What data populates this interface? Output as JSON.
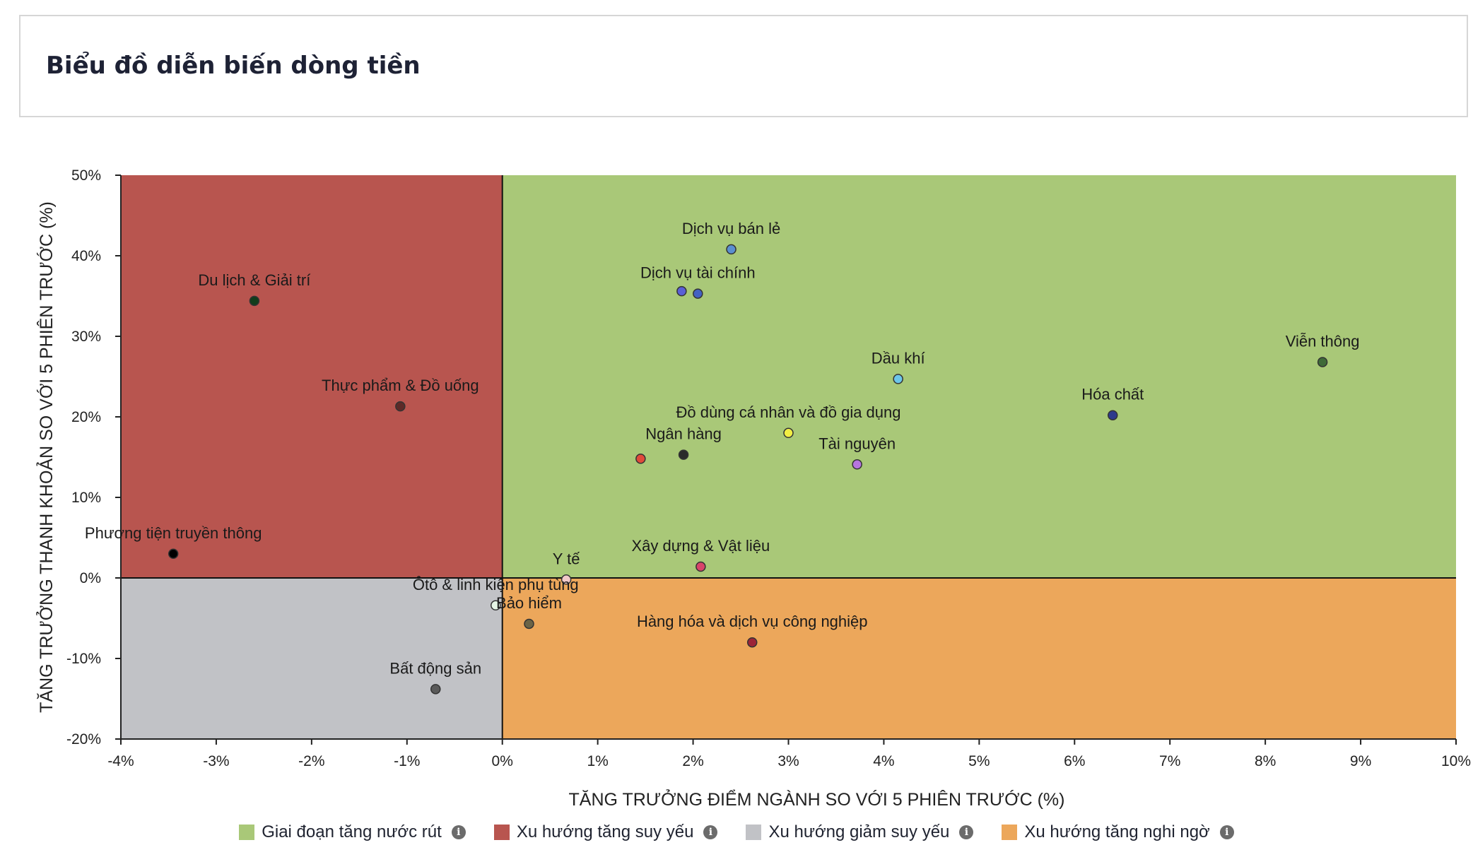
{
  "header": {
    "title": "Biểu đồ diễn biến dòng tiền"
  },
  "chart_data": {
    "type": "scatter",
    "xlabel": "TĂNG TRƯỞNG ĐIỂM NGÀNH SO VỚI 5 PHIÊN TRƯỚC (%)",
    "ylabel": "TĂNG TRƯỞNG THANH KHOẢN SO VỚI 5 PHIÊN TRƯỚC (%)",
    "xlim": [
      -4,
      10
    ],
    "ylim": [
      -20,
      50
    ],
    "xticks": [
      -4,
      -3,
      -2,
      -1,
      0,
      1,
      2,
      3,
      4,
      5,
      6,
      7,
      8,
      9,
      10
    ],
    "yticks": [
      -20,
      -10,
      0,
      10,
      20,
      30,
      40,
      50
    ],
    "xtick_labels": [
      "-4%",
      "-3%",
      "-2%",
      "-1%",
      "0%",
      "1%",
      "2%",
      "3%",
      "4%",
      "5%",
      "6%",
      "7%",
      "8%",
      "9%",
      "10%"
    ],
    "ytick_labels": [
      "-20%",
      "-10%",
      "0%",
      "10%",
      "20%",
      "30%",
      "40%",
      "50%"
    ],
    "quadrants": [
      {
        "name": "Giai đoạn tăng nước rút",
        "color": "#a9c878"
      },
      {
        "name": "Xu hướng tăng suy yếu",
        "color": "#b8554f"
      },
      {
        "name": "Xu hướng giảm suy yếu",
        "color": "#c1c2c6"
      },
      {
        "name": "Xu hướng tăng nghi ngờ",
        "color": "#eca75b"
      }
    ],
    "points": [
      {
        "label": "Dịch vụ bán lẻ",
        "x": 2.4,
        "y": 40.8,
        "color": "#5a8fd0"
      },
      {
        "label": "Dịch vụ tài chính",
        "x": 2.05,
        "y": 35.3,
        "color": "#4361c2"
      },
      {
        "label": "",
        "x": 1.88,
        "y": 35.6,
        "color": "#5a5fd6"
      },
      {
        "label": "Du lịch & Giải trí",
        "x": -2.6,
        "y": 34.4,
        "color": "#123d1c"
      },
      {
        "label": "Viễn thông",
        "x": 8.6,
        "y": 26.8,
        "color": "#3f6a38"
      },
      {
        "label": "Dầu khí",
        "x": 4.15,
        "y": 24.7,
        "color": "#6cc6ea"
      },
      {
        "label": "Thực phẩm & Đồ uống",
        "x": -1.07,
        "y": 21.3,
        "color": "#5c2a28"
      },
      {
        "label": "Hóa chất",
        "x": 6.4,
        "y": 20.2,
        "color": "#2d3a8c"
      },
      {
        "label": "Đồ dùng cá nhân và đồ gia dụng",
        "x": 3.0,
        "y": 18.0,
        "color": "#f2ee44"
      },
      {
        "label": "Ngân hàng",
        "x": 1.9,
        "y": 15.3,
        "color": "#2a2a2a"
      },
      {
        "label": "",
        "x": 1.45,
        "y": 14.8,
        "color": "#e04a3a"
      },
      {
        "label": "Tài nguyên",
        "x": 3.72,
        "y": 14.1,
        "color": "#b775e0"
      },
      {
        "label": "Phương tiện truyền thông",
        "x": -3.45,
        "y": 3.0,
        "color": "#000000"
      },
      {
        "label": "Xây dựng & Vật liệu",
        "x": 2.08,
        "y": 1.4,
        "color": "#d8456a"
      },
      {
        "label": "Y tế",
        "x": 0.67,
        "y": -0.2,
        "color": "#f1c9c9"
      },
      {
        "label": "Ôtô & linh kiện phụ tùng",
        "x": -0.07,
        "y": -3.4,
        "color": "#e6f6e6"
      },
      {
        "label": "Bảo hiểm",
        "x": 0.28,
        "y": -5.7,
        "color": "#6c6446"
      },
      {
        "label": "Hàng hóa và dịch vụ công nghiệp",
        "x": 2.62,
        "y": -8.0,
        "color": "#9c2438"
      },
      {
        "label": "Bất động sản",
        "x": -0.7,
        "y": -13.8,
        "color": "#5a5a5a"
      }
    ]
  },
  "legend": {
    "items": [
      {
        "label": "Giai đoạn tăng nước rút",
        "color": "#a9c878",
        "icon": "info-icon"
      },
      {
        "label": "Xu hướng tăng suy yếu",
        "color": "#b8554f",
        "icon": "info-icon"
      },
      {
        "label": "Xu hướng giảm suy yếu",
        "color": "#c1c2c6",
        "icon": "info-icon"
      },
      {
        "label": "Xu hướng tăng nghi ngờ",
        "color": "#eca75b",
        "icon": "info-icon"
      }
    ]
  }
}
